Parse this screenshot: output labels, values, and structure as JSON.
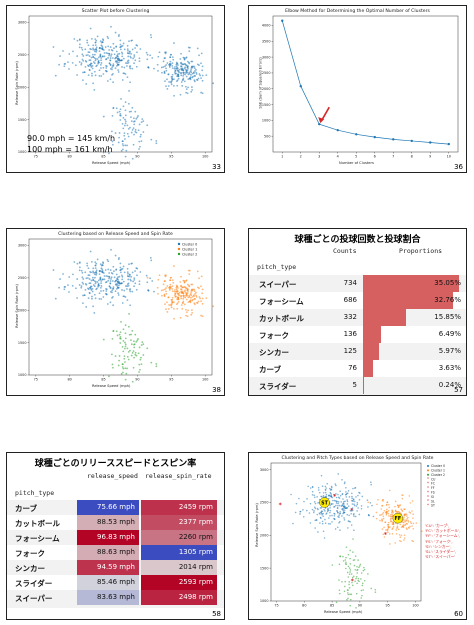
{
  "slides": {
    "s33": {
      "page": "33",
      "title": "Scatter Plot before Clustering",
      "xlabel": "Release Speed (mph)",
      "ylabel": "Release Spin Rate (rpm)",
      "annotation_line1": "90.0 mph = 145 km/h",
      "annotation_line2": "100 mph = 161 km/h"
    },
    "s36": {
      "page": "36",
      "title": "Elbow Method for Determining the Optimal Number of Clusters",
      "xlabel": "Number of Clusters",
      "ylabel": "SSE (Sum of Squared Errors)"
    },
    "s38": {
      "page": "38",
      "title": "Clustering based on Release Speed and Spin Rate",
      "xlabel": "Release Speed (mph)",
      "ylabel": "Release Spin Rate (rpm)",
      "legend": [
        "Cluster 0",
        "Cluster 1",
        "Cluster 2"
      ]
    },
    "s57": {
      "page": "57",
      "title": "球種ごとの投球回数と投球割合",
      "col_counts": "Counts",
      "col_props": "Proportions",
      "index_name": "pitch_type"
    },
    "s58": {
      "page": "58",
      "title": "球種ごとのリリーススピードとスピン率",
      "col_speed": "release_speed",
      "col_spin": "release_spin_rate",
      "index_name": "pitch_type"
    },
    "s60": {
      "page": "60",
      "title": "Clustering and Pitch Types based on Release Speed and Spin Rate",
      "xlabel": "Release Speed (mph)",
      "ylabel": "Release Spin Rate (rpm)",
      "legend": [
        "Cluster 0",
        "Cluster 1",
        "Cluster 2",
        "CU",
        "FC",
        "FF",
        "FS",
        "SI",
        "SL",
        "ST"
      ],
      "mapping": [
        "'CU': 'カーブ',",
        "'FC': 'カットボール',",
        "'FF': 'フォーシーム',",
        "'FS': 'フォーク',",
        "'SI': 'シンカー',",
        "'SL': 'スライダー',",
        "'ST': 'スイーパー'"
      ],
      "marker_labels": [
        "ST",
        "FF"
      ]
    }
  },
  "colors": {
    "blue": "#1f77b4",
    "orange": "#ff7f0e",
    "green": "#2ca02c",
    "red_bar": "#d65f5f",
    "red_mark": "#d62728"
  },
  "chart_data": [
    {
      "type": "scatter",
      "title": "Scatter Plot before Clustering",
      "xlabel": "Release Speed (mph)",
      "ylabel": "Release Spin Rate (rpm)",
      "xlim": [
        74,
        101
      ],
      "ylim": [
        1000,
        3100
      ],
      "xticks": [
        75,
        80,
        85,
        90,
        95,
        100
      ],
      "yticks": [
        1000,
        1500,
        2000,
        2500,
        3000
      ],
      "clusters": [
        {
          "center": [
            85.5,
            2470
          ],
          "spread": [
            2.8,
            170
          ],
          "n": 300
        },
        {
          "center": [
            96.3,
            2260
          ],
          "spread": [
            1.7,
            150
          ],
          "n": 220
        },
        {
          "center": [
            88.8,
            1350
          ],
          "spread": [
            1.3,
            200
          ],
          "n": 90
        }
      ]
    },
    {
      "type": "line",
      "title": "Elbow Method for Determining the Optimal Number of Clusters",
      "xlabel": "Number of Clusters",
      "ylabel": "SSE (Sum of Squared Errors)",
      "x": [
        1,
        2,
        3,
        4,
        5,
        6,
        7,
        8,
        9,
        10
      ],
      "y": [
        4150,
        2080,
        880,
        690,
        560,
        470,
        400,
        350,
        300,
        250
      ],
      "xlim": [
        0.5,
        10.5
      ],
      "ylim": [
        0,
        4300
      ],
      "yticks": [
        500,
        1000,
        1500,
        2000,
        2500,
        3000,
        3500,
        4000
      ],
      "arrow_at_x": 3
    },
    {
      "type": "scatter",
      "title": "Clustering based on Release Speed and Spin Rate",
      "xlabel": "Release Speed (mph)",
      "ylabel": "Release Spin Rate (rpm)",
      "xlim": [
        74,
        101
      ],
      "ylim": [
        1000,
        3100
      ],
      "xticks": [
        75,
        80,
        85,
        90,
        95,
        100
      ],
      "yticks": [
        1000,
        1500,
        2000,
        2500,
        3000
      ],
      "series": [
        {
          "name": "Cluster 0",
          "center": [
            85.5,
            2470
          ],
          "spread": [
            2.8,
            170
          ],
          "n": 300,
          "color": "#1f77b4"
        },
        {
          "name": "Cluster 1",
          "center": [
            96.3,
            2260
          ],
          "spread": [
            1.7,
            150
          ],
          "n": 220,
          "color": "#ff7f0e"
        },
        {
          "name": "Cluster 2",
          "center": [
            88.8,
            1350
          ],
          "spread": [
            1.3,
            200
          ],
          "n": 90,
          "color": "#2ca02c"
        }
      ]
    },
    {
      "type": "table",
      "title": "球種ごとの投球回数と投球割合",
      "columns": [
        "Counts",
        "Proportions"
      ],
      "rows": [
        {
          "pitch_type": "スイーパー",
          "Counts": 734,
          "Proportions": "35.05%",
          "p": 35.05
        },
        {
          "pitch_type": "フォーシーム",
          "Counts": 686,
          "Proportions": "32.76%",
          "p": 32.76
        },
        {
          "pitch_type": "カットボール",
          "Counts": 332,
          "Proportions": "15.85%",
          "p": 15.85
        },
        {
          "pitch_type": "フォーク",
          "Counts": 136,
          "Proportions": "6.49%",
          "p": 6.49
        },
        {
          "pitch_type": "シンカー",
          "Counts": 125,
          "Proportions": "5.97%",
          "p": 5.97
        },
        {
          "pitch_type": "カーブ",
          "Counts": 76,
          "Proportions": "3.63%",
          "p": 3.63
        },
        {
          "pitch_type": "スライダー",
          "Counts": 5,
          "Proportions": "0.24%",
          "p": 0.24
        }
      ]
    },
    {
      "type": "table",
      "title": "球種ごとのリリーススピードとスピン率",
      "columns": [
        "release_speed",
        "release_spin_rate"
      ],
      "rows": [
        {
          "pitch_type": "カーブ",
          "release_speed": "75.66 mph",
          "release_spin_rate": "2459 rpm",
          "speed": 75.66,
          "spin": 2459
        },
        {
          "pitch_type": "カットボール",
          "release_speed": "88.53 mph",
          "release_spin_rate": "2377 rpm",
          "speed": 88.53,
          "spin": 2377
        },
        {
          "pitch_type": "フォーシーム",
          "release_speed": "96.83 mph",
          "release_spin_rate": "2260 rpm",
          "speed": 96.83,
          "spin": 2260
        },
        {
          "pitch_type": "フォーク",
          "release_speed": "88.63 mph",
          "release_spin_rate": "1305 rpm",
          "speed": 88.63,
          "spin": 1305
        },
        {
          "pitch_type": "シンカー",
          "release_speed": "94.59 mph",
          "release_spin_rate": "2014 rpm",
          "speed": 94.59,
          "spin": 2014
        },
        {
          "pitch_type": "スライダー",
          "release_speed": "85.46 mph",
          "release_spin_rate": "2593 rpm",
          "speed": 85.46,
          "spin": 2593
        },
        {
          "pitch_type": "スイーパー",
          "release_speed": "83.63 mph",
          "release_spin_rate": "2498 rpm",
          "speed": 83.63,
          "spin": 2498
        }
      ]
    },
    {
      "type": "scatter",
      "title": "Clustering and Pitch Types based on Release Speed and Spin Rate",
      "xlabel": "Release Speed (mph)",
      "ylabel": "Release Spin Rate (rpm)",
      "xlim": [
        74,
        101
      ],
      "ylim": [
        1000,
        3100
      ],
      "xticks": [
        75,
        80,
        85,
        90,
        95,
        100
      ],
      "yticks": [
        1000,
        1500,
        2000,
        2500,
        3000
      ],
      "series": [
        {
          "name": "Cluster 0",
          "center": [
            85.5,
            2470
          ],
          "spread": [
            2.8,
            170
          ],
          "n": 300,
          "color": "#1f77b4"
        },
        {
          "name": "Cluster 1",
          "center": [
            96.3,
            2260
          ],
          "spread": [
            1.7,
            150
          ],
          "n": 220,
          "color": "#ff7f0e"
        },
        {
          "name": "Cluster 2",
          "center": [
            88.8,
            1350
          ],
          "spread": [
            1.3,
            200
          ],
          "n": 90,
          "color": "#2ca02c"
        }
      ],
      "pitch_means": [
        {
          "name": "CU",
          "x": 75.66,
          "y": 2459
        },
        {
          "name": "FC",
          "x": 88.53,
          "y": 2377
        },
        {
          "name": "FF",
          "x": 96.83,
          "y": 2260
        },
        {
          "name": "FS",
          "x": 88.63,
          "y": 1305
        },
        {
          "name": "SI",
          "x": 94.59,
          "y": 2014
        },
        {
          "name": "SL",
          "x": 85.46,
          "y": 2593
        },
        {
          "name": "ST",
          "x": 83.63,
          "y": 2498
        }
      ]
    }
  ]
}
